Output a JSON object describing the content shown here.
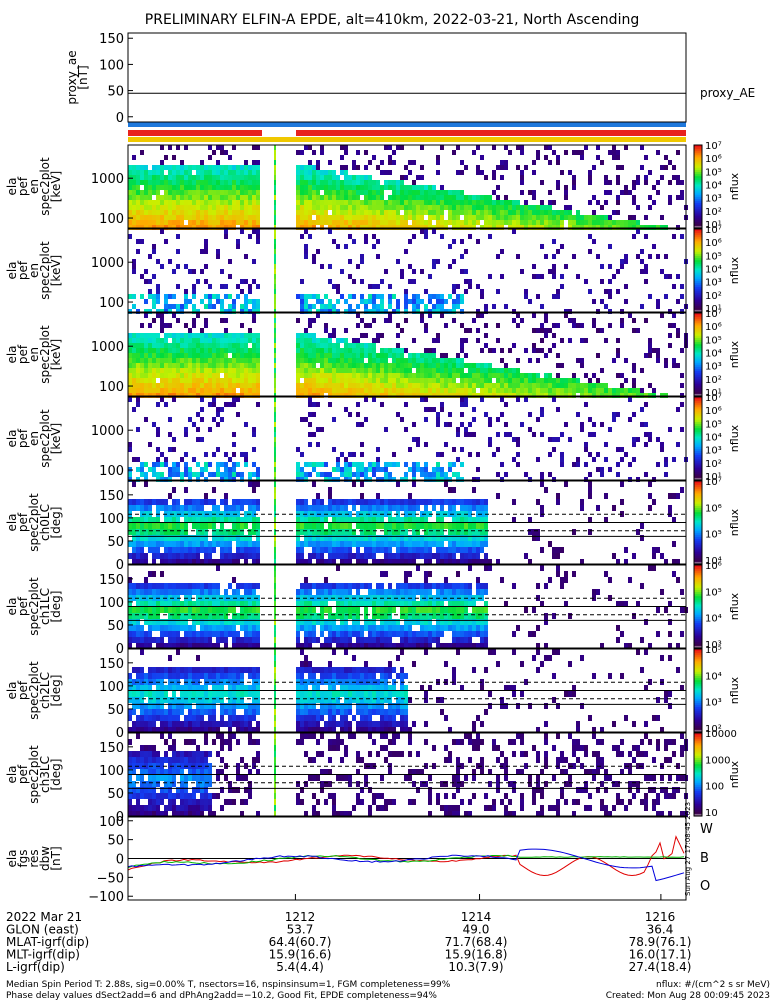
{
  "title": "PRELIMINARY ELFIN-A EPDE, alt=410km, 2022-03-21, North Ascending",
  "colors": {
    "bar_blue": "#1e78dc",
    "bar_red": "#e8231e",
    "bar_yellow": "#f0c800",
    "red": "#e00000",
    "green": "#00b400",
    "blue": "#0000dc"
  },
  "chart_data": [
    {
      "type": "line",
      "panel": "proxy_ae",
      "ylabel_lines": [
        "proxy_ae",
        "[nT]"
      ],
      "yticks": [
        "150",
        "100",
        "50",
        "0"
      ],
      "ytick_values": [
        150,
        100,
        50,
        0
      ],
      "ylim": [
        -10,
        160
      ],
      "legend": "proxy_AE",
      "series": [
        {
          "name": "proxy_AE",
          "x": [
            0,
            1
          ],
          "y": [
            45,
            45
          ]
        }
      ]
    },
    {
      "type": "heatmap",
      "panel": "spec1",
      "ylabel_lines": [
        "ela",
        "pef",
        "en",
        "spec2plot",
        "[keV]"
      ],
      "yticks": [
        "1000",
        "100"
      ],
      "log_y": true,
      "colorbar_label": "nflux",
      "colorbar_ticks": [
        "10⁷",
        "10⁶",
        "10⁵",
        "10⁴",
        "10³",
        "10²",
        "10¹"
      ],
      "pattern": "energy-full"
    },
    {
      "type": "heatmap",
      "panel": "spec2",
      "ylabel_lines": [
        "ela",
        "pef",
        "en",
        "spec2plot",
        "[keV]"
      ],
      "yticks": [
        "1000",
        "100"
      ],
      "log_y": true,
      "colorbar_label": "nflux",
      "colorbar_ticks": [
        "10⁷",
        "10⁶",
        "10⁵",
        "10⁴",
        "10³",
        "10²",
        "10¹"
      ],
      "pattern": "energy-sparse"
    },
    {
      "type": "heatmap",
      "panel": "spec3",
      "ylabel_lines": [
        "ela",
        "pef",
        "en",
        "spec2plot",
        "[keV]"
      ],
      "yticks": [
        "1000",
        "100"
      ],
      "log_y": true,
      "colorbar_label": "nflux",
      "colorbar_ticks": [
        "10⁷",
        "10⁶",
        "10⁵",
        "10⁴",
        "10³",
        "10²",
        "10¹"
      ],
      "pattern": "energy-full"
    },
    {
      "type": "heatmap",
      "panel": "spec4",
      "ylabel_lines": [
        "ela",
        "pef",
        "en",
        "spec2plot",
        "[keV]"
      ],
      "yticks": [
        "1000",
        "100"
      ],
      "log_y": true,
      "colorbar_label": "nflux",
      "colorbar_ticks": [
        "10⁷",
        "10⁶",
        "10⁵",
        "10⁴",
        "10³",
        "10²",
        "10¹"
      ],
      "pattern": "energy-sparse"
    },
    {
      "type": "heatmap",
      "panel": "pa0",
      "ylabel_lines": [
        "ela",
        "pef",
        "spec2plot",
        "ch0LC",
        "[deg]"
      ],
      "yticks": [
        "150",
        "100",
        "50",
        "0"
      ],
      "ytick_values": [
        150,
        100,
        50,
        0
      ],
      "ylim": [
        0,
        180
      ],
      "colorbar_label": "nflux",
      "colorbar_ticks": [
        "10⁷",
        "10⁶",
        "10⁵",
        "10⁴"
      ],
      "pattern": "pa-strong"
    },
    {
      "type": "heatmap",
      "panel": "pa1",
      "ylabel_lines": [
        "ela",
        "pef",
        "spec2plot",
        "ch1LC",
        "[deg]"
      ],
      "yticks": [
        "150",
        "100",
        "50",
        "0"
      ],
      "ytick_values": [
        150,
        100,
        50,
        0
      ],
      "ylim": [
        0,
        180
      ],
      "colorbar_label": "nflux",
      "colorbar_ticks": [
        "10⁶",
        "10⁵",
        "10⁴",
        "10³"
      ],
      "pattern": "pa-strong"
    },
    {
      "type": "heatmap",
      "panel": "pa2",
      "ylabel_lines": [
        "ela",
        "pef",
        "spec2plot",
        "ch2LC",
        "[deg]"
      ],
      "yticks": [
        "150",
        "100",
        "50",
        "0"
      ],
      "ytick_values": [
        150,
        100,
        50,
        0
      ],
      "ylim": [
        0,
        180
      ],
      "colorbar_label": "nflux",
      "colorbar_ticks": [
        "10⁵",
        "10⁴",
        "10³",
        "10²"
      ],
      "pattern": "pa-mid"
    },
    {
      "type": "heatmap",
      "panel": "pa3",
      "ylabel_lines": [
        "ela",
        "pef",
        "spec2plot",
        "ch3LC",
        "[deg]"
      ],
      "yticks": [
        "150",
        "100",
        "50",
        "0"
      ],
      "ytick_values": [
        150,
        100,
        50,
        0
      ],
      "ylim": [
        0,
        180
      ],
      "colorbar_label": "nflux",
      "colorbar_ticks": [
        "10000",
        "1000",
        "100",
        "10"
      ],
      "pattern": "pa-weak"
    },
    {
      "type": "line",
      "panel": "fgm",
      "ylabel_lines": [
        "ela",
        "fgs",
        "res",
        "dbw",
        "[nT]"
      ],
      "yticks": [
        "100",
        "50",
        "0",
        "−50",
        "−100"
      ],
      "ytick_values": [
        100,
        50,
        0,
        -50,
        -100
      ],
      "ylim": [
        -110,
        110
      ],
      "legend_labels": [
        "W",
        "B",
        "O"
      ],
      "series": [
        {
          "name": "W"
        },
        {
          "name": "B"
        },
        {
          "name": "O"
        }
      ]
    }
  ],
  "xaxis": {
    "ticks": [
      "1212",
      "1214",
      "1216"
    ],
    "tick_fractions": [
      0.3,
      0.63,
      0.955
    ],
    "rows": [
      {
        "label": "2022 Mar 21",
        "values": [
          "1212",
          "1214",
          "1216"
        ]
      },
      {
        "label": "GLON (east)",
        "values": [
          "53.7",
          "49.0",
          "36.4"
        ]
      },
      {
        "label": "MLAT-igrf(dip)",
        "values": [
          "64.4(60.7)",
          "71.7(68.4)",
          "78.9(76.1)"
        ]
      },
      {
        "label": "MLT-igrf(dip)",
        "values": [
          "15.9(16.6)",
          "15.9(16.8)",
          "16.0(17.1)"
        ]
      },
      {
        "label": "L-igrf(dip)",
        "values": [
          "5.4(4.4)",
          "10.3(7.9)",
          "27.4(18.4)"
        ]
      }
    ]
  },
  "footer": {
    "line1_left": "Median Spin Period T: 2.88s, sig=0.00% T, nsectors=16, nspinsinsum=1, FGM completeness=99%",
    "line2_left": "Phase delay values dSect2add=6 and dPhAng2add=−10.2, Good Fit, EPDE completeness=94%",
    "line1_right": "nflux: #/(cm^2 s sr MeV)",
    "line2_right": "Created: Mon Aug 28 00:09:45 2023",
    "stamp": "Sun Aug 27 17:08:45 2023"
  }
}
